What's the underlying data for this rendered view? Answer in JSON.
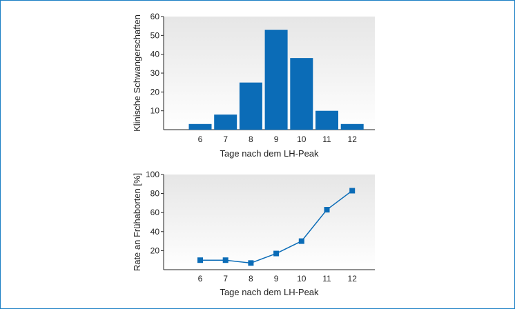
{
  "chart_data": [
    {
      "type": "bar",
      "categories": [
        "6",
        "7",
        "8",
        "9",
        "10",
        "11",
        "12"
      ],
      "values": [
        3,
        8,
        25,
        53,
        38,
        10,
        3
      ],
      "xlabel": "Tage nach dem LH-Peak",
      "ylabel": "Klinische Schwangerschaften",
      "ylim": [
        0,
        60
      ],
      "yticks": [
        10,
        20,
        30,
        40,
        50,
        60
      ],
      "grid": false,
      "colors": {
        "bar": "#0b6cb7",
        "plot_bg_top": "#e6e6e6",
        "plot_bg_bottom": "#ffffff"
      }
    },
    {
      "type": "line",
      "x": [
        "6",
        "7",
        "8",
        "9",
        "10",
        "11",
        "12"
      ],
      "values": [
        10,
        10,
        7,
        17,
        30,
        63,
        83
      ],
      "xlabel": "Tage nach dem LH-Peak",
      "ylabel": "Rate an Frühaborten [%]",
      "ylim": [
        0,
        100
      ],
      "yticks": [
        20,
        40,
        60,
        80,
        100
      ],
      "grid": false,
      "marker": "square",
      "colors": {
        "line": "#0b6cb7",
        "plot_bg_top": "#e6e6e6",
        "plot_bg_bottom": "#ffffff"
      }
    }
  ]
}
